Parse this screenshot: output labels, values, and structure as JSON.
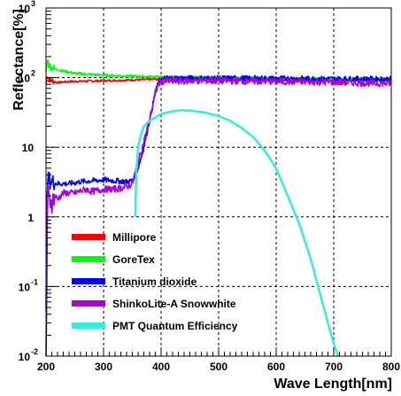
{
  "chart_data": {
    "type": "line",
    "xlabel": "Wave Length[nm]",
    "ylabel": "Reflectance[%]",
    "xlim": [
      200,
      800
    ],
    "ylim": [
      0.01,
      1000
    ],
    "y_scale": "log",
    "grid": true,
    "grid_style": "dashed",
    "legend_position": "bottom-left",
    "x_ticks": [
      {
        "value": 200,
        "label": "200"
      },
      {
        "value": 300,
        "label": "300"
      },
      {
        "value": 400,
        "label": "400"
      },
      {
        "value": 500,
        "label": "500"
      },
      {
        "value": 600,
        "label": "600"
      },
      {
        "value": 700,
        "label": "700"
      },
      {
        "value": 800,
        "label": "800"
      }
    ],
    "y_ticks": [
      {
        "value": 0.01,
        "base": "10",
        "exp": "-2"
      },
      {
        "value": 0.1,
        "base": "10",
        "exp": "-1"
      },
      {
        "value": 1,
        "base": "1",
        "exp": ""
      },
      {
        "value": 10,
        "base": "10",
        "exp": ""
      },
      {
        "value": 100,
        "base": "10",
        "exp": "2"
      },
      {
        "value": 1000,
        "base": "10",
        "exp": "3"
      }
    ],
    "series": [
      {
        "name": "Millipore",
        "color": "#ff0000",
        "x": [
          200,
          202,
          205,
          210,
          220,
          240,
          300,
          400,
          500,
          600,
          700,
          800
        ],
        "y": [
          80,
          110,
          95,
          90,
          85,
          88,
          90,
          95,
          95,
          92,
          92,
          92
        ]
      },
      {
        "name": "GoreTex",
        "color": "#00ff00",
        "x": [
          200,
          202,
          205,
          210,
          220,
          250,
          300,
          400,
          500,
          600,
          700,
          800
        ],
        "y": [
          120,
          180,
          150,
          140,
          130,
          115,
          108,
          102,
          100,
          98,
          96,
          96
        ]
      },
      {
        "name": "Titanium dioxide",
        "color": "#0000ff",
        "x": [
          200,
          203,
          210,
          220,
          240,
          260,
          280,
          300,
          320,
          340,
          350,
          360,
          370,
          380,
          390,
          395,
          400,
          410,
          450,
          500,
          600,
          700,
          800
        ],
        "y": [
          0.01,
          3.5,
          3.2,
          3.0,
          3.0,
          3.2,
          3.3,
          3.4,
          3.3,
          3.2,
          3.3,
          5,
          10,
          25,
          60,
          85,
          95,
          98,
          98,
          98,
          97,
          96,
          95
        ]
      },
      {
        "name": "ShinkoLite-A Snowwhite",
        "color": "#aa00dd",
        "x": [
          200,
          202,
          205,
          210,
          215,
          220,
          230,
          250,
          270,
          280,
          300,
          320,
          340,
          350,
          360,
          370,
          380,
          390,
          395,
          400,
          450,
          500,
          600,
          700,
          800
        ],
        "y": [
          0.05,
          2.5,
          1.8,
          1.6,
          2.0,
          1.8,
          2.2,
          2.2,
          2.5,
          2.3,
          2.5,
          2.5,
          2.7,
          3.0,
          6,
          12,
          25,
          60,
          80,
          88,
          90,
          90,
          88,
          86,
          82
        ]
      },
      {
        "name": "PMT Quantum Efficiency",
        "color": "#33eedd",
        "x": [
          355,
          356,
          358,
          360,
          365,
          370,
          380,
          400,
          420,
          440,
          460,
          480,
          500,
          520,
          540,
          560,
          580,
          600,
          620,
          640,
          660,
          680,
          700,
          710
        ],
        "y": [
          1,
          3,
          7,
          10,
          15,
          20,
          24,
          30,
          33,
          34,
          33,
          31,
          28,
          24,
          19,
          14,
          9,
          5,
          2,
          0.8,
          0.25,
          0.06,
          0.015,
          0.009
        ]
      }
    ]
  }
}
